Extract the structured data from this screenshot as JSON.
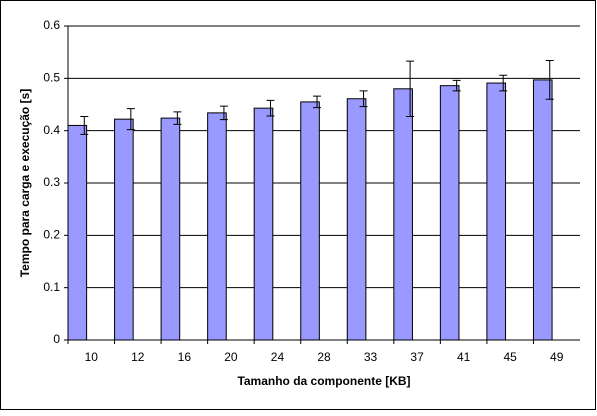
{
  "chart_data": {
    "type": "bar",
    "x_label": "Tamanho da componente [KB]",
    "y_label": "Tempo para carga e execução [s]",
    "categories": [
      "10",
      "12",
      "16",
      "20",
      "24",
      "28",
      "33",
      "37",
      "41",
      "45",
      "49"
    ],
    "values": [
      0.41,
      0.422,
      0.424,
      0.434,
      0.443,
      0.455,
      0.461,
      0.48,
      0.486,
      0.491,
      0.497
    ],
    "errors": [
      0.017,
      0.02,
      0.012,
      0.013,
      0.015,
      0.011,
      0.015,
      0.053,
      0.01,
      0.015,
      0.037
    ],
    "color": "#9999ff",
    "ylim": [
      0,
      0.6
    ],
    "yticks": [
      0,
      0.1,
      0.2,
      0.3,
      0.4,
      0.5,
      0.6
    ],
    "grid": true
  }
}
